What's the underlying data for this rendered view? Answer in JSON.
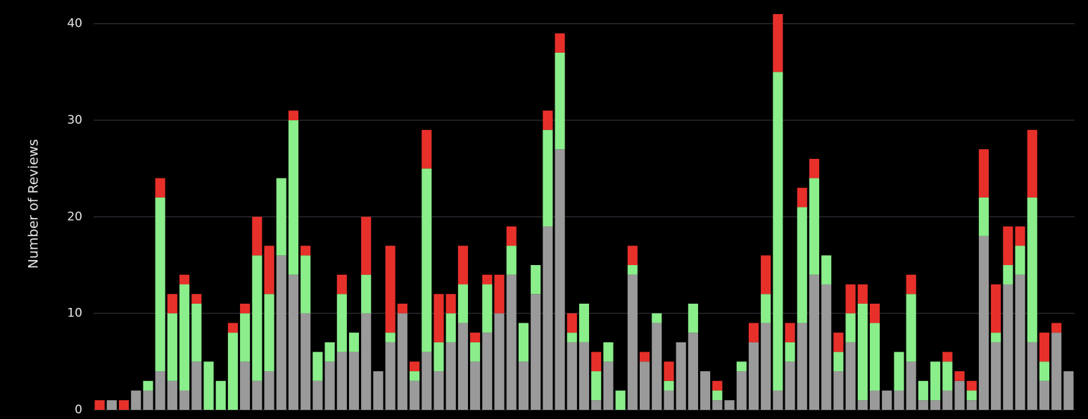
{
  "chart_data": {
    "type": "stacked-bar",
    "y_label": "Number of Reviews",
    "categories": [
      null,
      null,
      null,
      null,
      null,
      null,
      null,
      null,
      null,
      null,
      null,
      null,
      null,
      null,
      null,
      null,
      null,
      null,
      null,
      null,
      null,
      null,
      null,
      null,
      null,
      null,
      null,
      null,
      null,
      null,
      null,
      null,
      null,
      null,
      null,
      null,
      null,
      null,
      null,
      null,
      null,
      null,
      null,
      null,
      null,
      null,
      null,
      null,
      null,
      null,
      null,
      null,
      null,
      null,
      null,
      null,
      null,
      null,
      null,
      null,
      null,
      null,
      null,
      null,
      null,
      null,
      null,
      null,
      null,
      null,
      null,
      null,
      null,
      null,
      null,
      null,
      null,
      null,
      null,
      null,
      null
    ],
    "series": [
      {
        "color": "#9a9a9a",
        "values": [
          0,
          1,
          0,
          2,
          2,
          4,
          3,
          2,
          5,
          0,
          0,
          0,
          5,
          3,
          4,
          16,
          14,
          10,
          3,
          5,
          6,
          6,
          10,
          4,
          7,
          10,
          3,
          6,
          4,
          7,
          9,
          5,
          8,
          10,
          14,
          5,
          12,
          19,
          27,
          7,
          7,
          1,
          5,
          0,
          14,
          5,
          9,
          2,
          7,
          8,
          4,
          1,
          1,
          4,
          7,
          9,
          2,
          5,
          9,
          14,
          13,
          4,
          7,
          1,
          2,
          2,
          2,
          5,
          1,
          1,
          2,
          3,
          1,
          18,
          7,
          13,
          14,
          7,
          3,
          8,
          4
        ]
      },
      {
        "color": "#8aee8a",
        "values": [
          0,
          0,
          0,
          0,
          1,
          18,
          7,
          11,
          6,
          5,
          3,
          8,
          5,
          13,
          8,
          8,
          16,
          6,
          3,
          2,
          6,
          2,
          4,
          0,
          1,
          0,
          1,
          19,
          3,
          3,
          4,
          2,
          5,
          0,
          3,
          4,
          3,
          10,
          10,
          1,
          4,
          3,
          2,
          2,
          1,
          0,
          1,
          1,
          0,
          3,
          0,
          1,
          0,
          1,
          0,
          3,
          33,
          2,
          12,
          10,
          3,
          2,
          3,
          10,
          7,
          0,
          4,
          7,
          2,
          4,
          3,
          0,
          1,
          4,
          1,
          2,
          3,
          15,
          2,
          0,
          0
        ]
      },
      {
        "color": "#e8302a",
        "values": [
          1,
          0,
          1,
          0,
          0,
          2,
          2,
          1,
          1,
          0,
          0,
          1,
          1,
          4,
          5,
          0,
          1,
          1,
          0,
          0,
          2,
          0,
          6,
          0,
          9,
          1,
          1,
          4,
          5,
          2,
          4,
          1,
          1,
          4,
          2,
          0,
          0,
          2,
          2,
          2,
          0,
          2,
          0,
          0,
          2,
          1,
          0,
          2,
          0,
          0,
          0,
          1,
          0,
          0,
          2,
          4,
          6,
          2,
          2,
          2,
          0,
          2,
          3,
          2,
          2,
          0,
          0,
          2,
          0,
          0,
          1,
          1,
          1,
          5,
          5,
          4,
          2,
          7,
          3,
          1,
          0
        ]
      }
    ],
    "ylim": [
      0,
      41
    ],
    "yticks": [
      0,
      10,
      20,
      30,
      40
    ],
    "grid": true
  }
}
